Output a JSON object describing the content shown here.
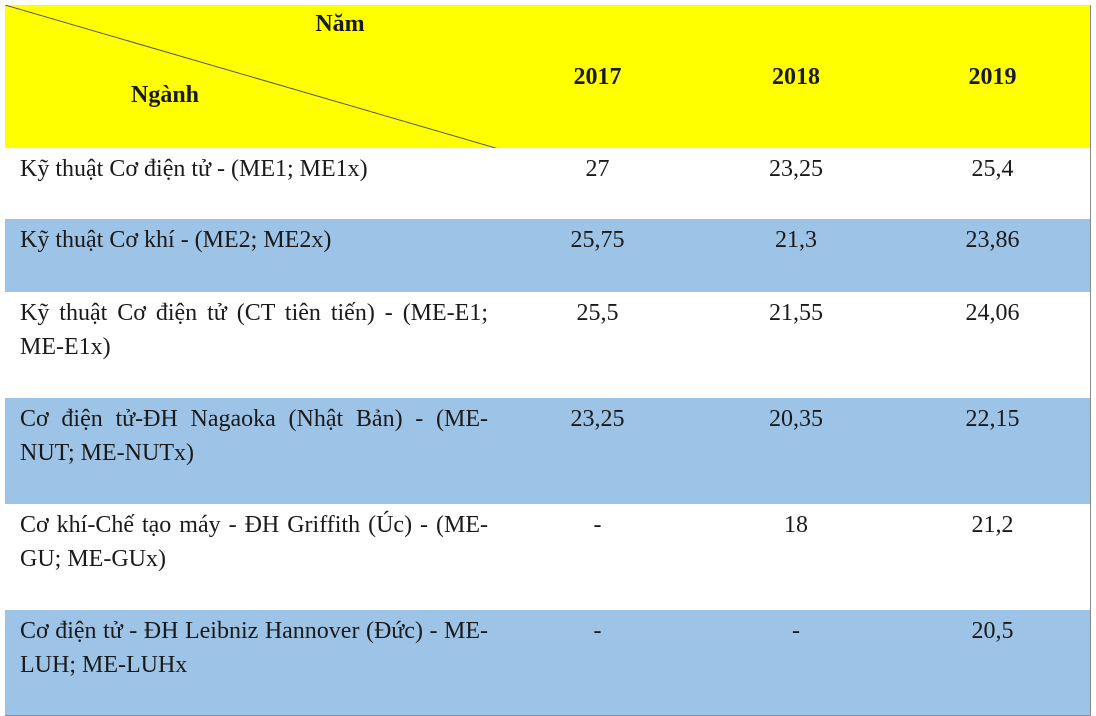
{
  "table": {
    "header": {
      "year_caption": "Năm",
      "field_caption": "Ngành",
      "years": [
        "2017",
        "2018",
        "2019"
      ]
    },
    "rows": [
      [
        "Kỹ thuật Cơ điện tử - (ME1; ME1x)",
        "27",
        "23,25",
        "25,4"
      ],
      [
        "Kỹ thuật Cơ khí - (ME2; ME2x)",
        "25,75",
        "21,3",
        "23,86"
      ],
      [
        "Kỹ thuật Cơ điện tử (CT tiên tiến) - (ME-E1; ME-E1x)",
        "25,5",
        "21,55",
        "24,06"
      ],
      [
        "Cơ điện tử-ĐH Nagaoka (Nhật Bản) - (ME-NUT; ME-NUTx)",
        "23,25",
        "20,35",
        "22,15"
      ],
      [
        "Cơ khí-Chế tạo máy - ĐH Griffith (Úc) - (ME-GU; ME-GUx)",
        "-",
        "18",
        "21,2"
      ],
      [
        "Cơ điện tử - ĐH Leibniz Hannover (Đức) - ME-LUH; ME-LUHx",
        "-",
        "-",
        "20,5"
      ]
    ]
  }
}
